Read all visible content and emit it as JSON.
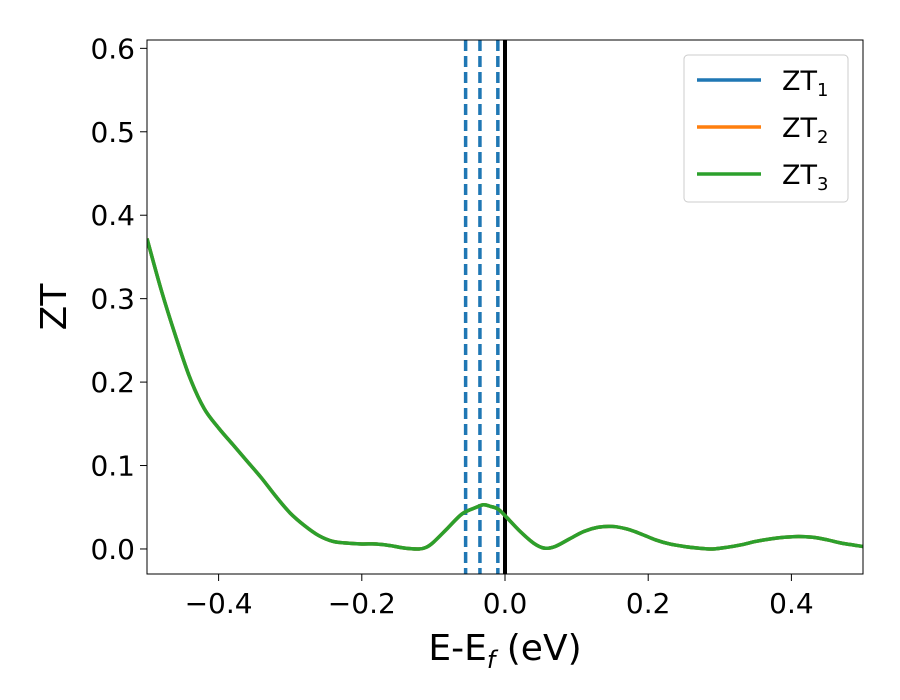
{
  "chart_data": {
    "type": "line",
    "xlabel": {
      "base": "E-E",
      "sub": "f",
      "rest": " (eV)"
    },
    "ylabel": "ZT",
    "xlim": [
      -0.5,
      0.5
    ],
    "ylim": [
      -0.03,
      0.61
    ],
    "xticks": [
      {
        "value": -0.4,
        "label": "−0.4"
      },
      {
        "value": -0.2,
        "label": "−0.2"
      },
      {
        "value": 0.0,
        "label": "0.0"
      },
      {
        "value": 0.2,
        "label": "0.2"
      },
      {
        "value": 0.4,
        "label": "0.4"
      }
    ],
    "yticks": [
      {
        "value": 0.0,
        "label": "0.0"
      },
      {
        "value": 0.1,
        "label": "0.1"
      },
      {
        "value": 0.2,
        "label": "0.2"
      },
      {
        "value": 0.3,
        "label": "0.3"
      },
      {
        "value": 0.4,
        "label": "0.4"
      },
      {
        "value": 0.5,
        "label": "0.5"
      },
      {
        "value": 0.6,
        "label": "0.6"
      }
    ],
    "grid": false,
    "legend": "top-right",
    "x": [
      -0.5,
      -0.48,
      -0.46,
      -0.44,
      -0.42,
      -0.4,
      -0.38,
      -0.36,
      -0.34,
      -0.32,
      -0.3,
      -0.28,
      -0.26,
      -0.24,
      -0.22,
      -0.2,
      -0.18,
      -0.16,
      -0.14,
      -0.12,
      -0.11,
      -0.1,
      -0.08,
      -0.06,
      -0.04,
      -0.03,
      -0.02,
      -0.01,
      0.0,
      0.02,
      0.04,
      0.055,
      0.07,
      0.09,
      0.11,
      0.13,
      0.15,
      0.17,
      0.19,
      0.21,
      0.23,
      0.25,
      0.27,
      0.29,
      0.31,
      0.33,
      0.35,
      0.37,
      0.39,
      0.41,
      0.43,
      0.45,
      0.47,
      0.5
    ],
    "series": [
      {
        "name": "ZT",
        "sub": "1",
        "color": "#1f77b4",
        "values": [
          0.372,
          0.31,
          0.255,
          0.205,
          0.168,
          0.145,
          0.125,
          0.105,
          0.085,
          0.063,
          0.043,
          0.028,
          0.016,
          0.009,
          0.007,
          0.006,
          0.006,
          0.004,
          0.001,
          0.0,
          0.002,
          0.008,
          0.025,
          0.042,
          0.05,
          0.053,
          0.051,
          0.048,
          0.04,
          0.022,
          0.007,
          0.001,
          0.003,
          0.012,
          0.021,
          0.026,
          0.027,
          0.024,
          0.018,
          0.011,
          0.006,
          0.003,
          0.001,
          0.0,
          0.002,
          0.005,
          0.009,
          0.012,
          0.014,
          0.015,
          0.014,
          0.011,
          0.007,
          0.003
        ]
      },
      {
        "name": "ZT",
        "sub": "2",
        "color": "#ff7f0e",
        "values": [
          0.372,
          0.31,
          0.255,
          0.205,
          0.168,
          0.145,
          0.125,
          0.105,
          0.085,
          0.063,
          0.043,
          0.028,
          0.016,
          0.009,
          0.007,
          0.006,
          0.006,
          0.004,
          0.001,
          0.0,
          0.002,
          0.008,
          0.025,
          0.042,
          0.05,
          0.053,
          0.051,
          0.048,
          0.04,
          0.022,
          0.007,
          0.001,
          0.003,
          0.012,
          0.021,
          0.026,
          0.027,
          0.024,
          0.018,
          0.011,
          0.006,
          0.003,
          0.001,
          0.0,
          0.002,
          0.005,
          0.009,
          0.012,
          0.014,
          0.015,
          0.014,
          0.011,
          0.007,
          0.003
        ]
      },
      {
        "name": "ZT",
        "sub": "3",
        "color": "#2ca02c",
        "values": [
          0.372,
          0.31,
          0.255,
          0.205,
          0.168,
          0.145,
          0.125,
          0.105,
          0.085,
          0.063,
          0.043,
          0.028,
          0.016,
          0.009,
          0.007,
          0.006,
          0.006,
          0.004,
          0.001,
          0.0,
          0.002,
          0.008,
          0.025,
          0.042,
          0.05,
          0.053,
          0.051,
          0.048,
          0.04,
          0.022,
          0.007,
          0.001,
          0.003,
          0.012,
          0.021,
          0.026,
          0.027,
          0.024,
          0.018,
          0.011,
          0.006,
          0.003,
          0.001,
          0.0,
          0.002,
          0.005,
          0.009,
          0.012,
          0.014,
          0.015,
          0.014,
          0.011,
          0.007,
          0.003
        ]
      }
    ],
    "vlines": [
      {
        "x": -0.055,
        "style": "dashed",
        "color": "#1f77b4"
      },
      {
        "x": -0.035,
        "style": "dashed",
        "color": "#1f77b4"
      },
      {
        "x": -0.01,
        "style": "dashed",
        "color": "#1f77b4"
      },
      {
        "x": 0.0,
        "style": "solid",
        "color": "#000000"
      }
    ]
  }
}
